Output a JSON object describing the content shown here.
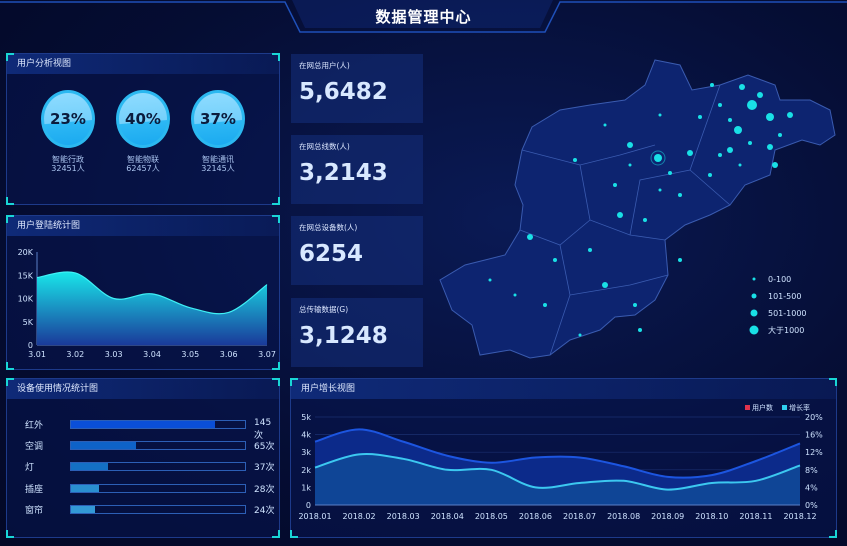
{
  "header": {
    "title": "数据管理中心"
  },
  "user_analysis": {
    "title": "用户分析视图",
    "items": [
      {
        "percent": "23%",
        "fill": 0.23,
        "name": "智能行政",
        "count": "32451人"
      },
      {
        "percent": "40%",
        "fill": 0.4,
        "name": "智能物联",
        "count": "62457人"
      },
      {
        "percent": "37%",
        "fill": 0.37,
        "name": "智能通讯",
        "count": "32145人"
      }
    ]
  },
  "stats": [
    {
      "label": "在网总用户(人)",
      "value": "5,6482"
    },
    {
      "label": "在网总线数(人)",
      "value": "3,2143"
    },
    {
      "label": "在网总设备数(人)",
      "value": "6254"
    },
    {
      "label": "总传输数据(G)",
      "value": "3,1248"
    }
  ],
  "map": {
    "legend": [
      "0-100",
      "101-500",
      "501-1000",
      "大于1000"
    ],
    "dot_color": "#19e0e6"
  },
  "device_usage": {
    "title": "设备使用情况统计图",
    "max": 175,
    "items": [
      {
        "name": "红外",
        "value": 145,
        "label": "145次",
        "color": "#0a4fd8"
      },
      {
        "name": "空调",
        "value": 65,
        "label": "65次",
        "color": "#0e62c8"
      },
      {
        "name": "灯",
        "value": 37,
        "label": "37次",
        "color": "#1470c4"
      },
      {
        "name": "插座",
        "value": 28,
        "label": "28次",
        "color": "#2a8fd0"
      },
      {
        "name": "窗帘",
        "value": 24,
        "label": "24次",
        "color": "#3399d6"
      }
    ]
  },
  "chart_data": [
    {
      "type": "area",
      "title": "用户登陆统计图",
      "categories": [
        "3.01",
        "3.02",
        "3.03",
        "3.04",
        "3.05",
        "3.06",
        "3.07"
      ],
      "values": [
        14.5,
        15.5,
        10,
        11,
        8,
        7,
        13
      ],
      "yticks": [
        "0",
        "5K",
        "10K",
        "15K",
        "20K"
      ],
      "ylim": [
        0,
        20
      ],
      "unit": "K"
    },
    {
      "type": "area",
      "title": "用户增长视图",
      "categories": [
        "2018.01",
        "2018.02",
        "2018.03",
        "2018.04",
        "2018.05",
        "2018.06",
        "2018.07",
        "2018.08",
        "2018.09",
        "2018.10",
        "2018.11",
        "2018.12"
      ],
      "series": [
        {
          "name": "用户数",
          "values": [
            3.6,
            4.3,
            3.6,
            2.8,
            2.4,
            2.7,
            2.7,
            2.2,
            1.6,
            1.7,
            2.5,
            3.5
          ],
          "axis": "left",
          "legend_color": "#e0334d"
        },
        {
          "name": "增长率",
          "values": [
            8.5,
            11.5,
            10.5,
            8,
            8,
            4,
            5,
            5.5,
            3.5,
            5,
            5.5,
            9
          ],
          "axis": "right",
          "legend_color": "#2fd0f0"
        }
      ],
      "yticks_left": [
        "0",
        "1k",
        "2k",
        "3k",
        "4k",
        "5k"
      ],
      "yticks_right": [
        "0%",
        "4%",
        "8%",
        "12%",
        "16%",
        "20%"
      ],
      "ylim_left": [
        0,
        5
      ],
      "ylim_right": [
        0,
        20
      ],
      "grid": true,
      "legend": "top-right"
    }
  ]
}
